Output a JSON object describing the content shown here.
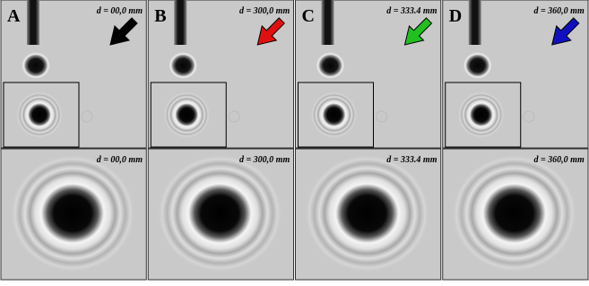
{
  "panels": [
    {
      "letter": "A",
      "label": "d = 00,0 mm",
      "arrow_color": "#000000",
      "zoom_label": "d = 00,0 mm"
    },
    {
      "letter": "B",
      "label": "d = 300,0 mm",
      "arrow_color": "#e01010",
      "zoom_label": "d = 300,0 mm"
    },
    {
      "letter": "C",
      "label": "d = 333.4 mm",
      "arrow_color": "#20c020",
      "zoom_label": "d = 333.4 mm"
    },
    {
      "letter": "D",
      "label": "d = 360,0 mm",
      "arrow_color": "#1010c0",
      "zoom_label": "d = 360,0 mm"
    }
  ]
}
